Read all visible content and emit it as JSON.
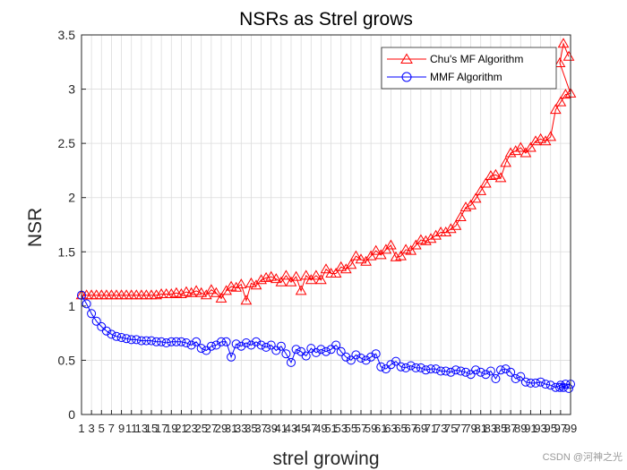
{
  "chart_data": {
    "type": "line",
    "title": "NSRs as Strel grows",
    "xlabel": "strel growing",
    "ylabel": "NSR",
    "xlim": [
      1,
      99
    ],
    "ylim": [
      0,
      3.5
    ],
    "yticks": [
      "0",
      "0.5",
      "1",
      "1.5",
      "2",
      "2.5",
      "3",
      "3.5"
    ],
    "grid": true,
    "legend_position": "top-right",
    "x": [
      1,
      2,
      3,
      4,
      5,
      6,
      7,
      8,
      9,
      10,
      11,
      12,
      13,
      14,
      15,
      16,
      17,
      18,
      19,
      20,
      21,
      22,
      23,
      24,
      25,
      26,
      27,
      28,
      29,
      30,
      31,
      32,
      33,
      34,
      35,
      36,
      37,
      38,
      39,
      40,
      41,
      42,
      43,
      44,
      45,
      46,
      47,
      48,
      49,
      50,
      51,
      52,
      53,
      54,
      55,
      56,
      57,
      58,
      59,
      60,
      61,
      62,
      63,
      64,
      65,
      66,
      67,
      68,
      69,
      70,
      71,
      72,
      73,
      74,
      75,
      76,
      77,
      78,
      79,
      80,
      81,
      82,
      83,
      84,
      85,
      86,
      87,
      88,
      89,
      90,
      91,
      92,
      93,
      94,
      95,
      96,
      97,
      98,
      99
    ],
    "series": [
      {
        "name": "Chu's MF Algorithm",
        "color": "#ff0000",
        "marker": "triangle",
        "values": [
          1.1,
          1.1,
          1.1,
          1.1,
          1.1,
          1.1,
          1.1,
          1.1,
          1.1,
          1.1,
          1.1,
          1.1,
          1.1,
          1.1,
          1.1,
          1.1,
          1.11,
          1.11,
          1.11,
          1.12,
          1.11,
          1.13,
          1.12,
          1.14,
          1.12,
          1.1,
          1.15,
          1.12,
          1.07,
          1.14,
          1.18,
          1.17,
          1.2,
          1.05,
          1.21,
          1.19,
          1.24,
          1.26,
          1.27,
          1.25,
          1.22,
          1.28,
          1.22,
          1.27,
          1.14,
          1.28,
          1.24,
          1.28,
          1.24,
          1.34,
          1.3,
          1.3,
          1.36,
          1.34,
          1.38,
          1.46,
          1.43,
          1.41,
          1.46,
          1.51,
          1.47,
          1.52,
          1.56,
          1.45,
          1.46,
          1.52,
          1.51,
          1.56,
          1.61,
          1.6,
          1.62,
          1.65,
          1.68,
          1.68,
          1.71,
          1.74,
          1.82,
          1.91,
          1.93,
          1.99,
          2.06,
          2.13,
          2.2,
          2.21,
          2.18,
          2.32,
          2.41,
          2.43,
          2.46,
          2.41,
          2.46,
          2.52,
          2.54,
          2.52,
          2.56,
          2.81,
          2.88,
          2.95,
          2.96
        ]
      },
      {
        "name": "MMF Algorithm",
        "color": "#0000ff",
        "marker": "circle",
        "values": [
          1.1,
          1.02,
          0.93,
          0.86,
          0.81,
          0.77,
          0.74,
          0.72,
          0.71,
          0.7,
          0.69,
          0.69,
          0.68,
          0.68,
          0.68,
          0.67,
          0.67,
          0.66,
          0.67,
          0.67,
          0.67,
          0.66,
          0.64,
          0.67,
          0.61,
          0.59,
          0.63,
          0.64,
          0.67,
          0.67,
          0.53,
          0.65,
          0.63,
          0.66,
          0.64,
          0.67,
          0.64,
          0.62,
          0.64,
          0.59,
          0.63,
          0.56,
          0.48,
          0.6,
          0.58,
          0.54,
          0.61,
          0.57,
          0.6,
          0.58,
          0.6,
          0.64,
          0.58,
          0.53,
          0.5,
          0.55,
          0.52,
          0.5,
          0.53,
          0.56,
          0.44,
          0.42,
          0.46,
          0.49,
          0.44,
          0.43,
          0.45,
          0.43,
          0.43,
          0.41,
          0.42,
          0.42,
          0.4,
          0.4,
          0.39,
          0.41,
          0.4,
          0.39,
          0.37,
          0.41,
          0.39,
          0.37,
          0.4,
          0.33,
          0.41,
          0.42,
          0.39,
          0.33,
          0.35,
          0.3,
          0.29,
          0.29,
          0.3,
          0.28,
          0.27,
          0.25,
          0.27,
          0.28,
          0.28
        ]
      }
    ],
    "tail": {
      "red": [
        3.24,
        3.42,
        3.3
      ],
      "blue": [
        0.25,
        0.25,
        0.24
      ]
    }
  },
  "watermark": "CSDN @河神之光"
}
